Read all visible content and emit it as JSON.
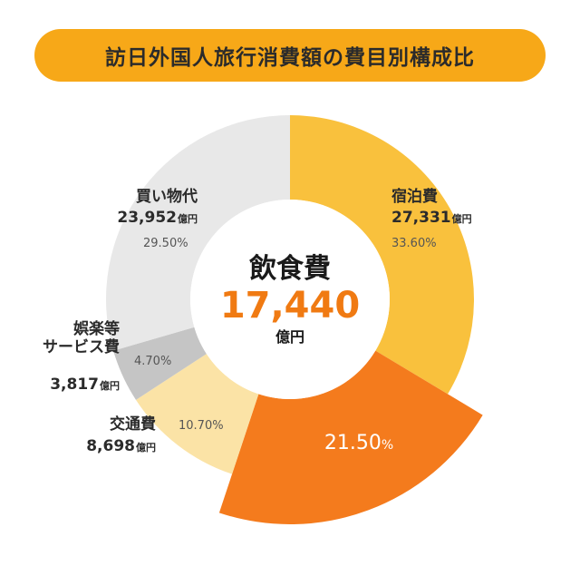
{
  "title": "訪日外国人旅行消費額の費目別構成比",
  "colors": {
    "title_bg": "#f7a818",
    "highlight": "#f07a12"
  },
  "chart_data": {
    "type": "pie",
    "style": "donut",
    "unit": "億円",
    "highlighted": "飲食費",
    "center": {
      "name": "飲食費",
      "value": "17,440",
      "unit": "億円"
    },
    "slices": [
      {
        "key": "lodging",
        "name_lines": [
          "宿泊費"
        ],
        "value": 27331,
        "value_label": "27,331",
        "percent": 33.6,
        "percent_label": "33.60",
        "color": "#f9c13d"
      },
      {
        "key": "food",
        "name_lines": [
          "飲食費"
        ],
        "value": 17440,
        "value_label": "17,440",
        "percent": 21.5,
        "percent_label": "21.50",
        "color": "#f47b1d",
        "exploded": true
      },
      {
        "key": "transport",
        "name_lines": [
          "交通費"
        ],
        "value": 8698,
        "value_label": "8,698",
        "percent": 10.7,
        "percent_label": "10.70",
        "color": "#fbe3a6"
      },
      {
        "key": "leisure",
        "name_lines": [
          "娯楽等",
          "サービス費"
        ],
        "value": 3817,
        "value_label": "3,817",
        "percent": 4.7,
        "percent_label": "4.70",
        "color": "#c5c5c5"
      },
      {
        "key": "shopping",
        "name_lines": [
          "買い物代"
        ],
        "value": 23952,
        "value_label": "23,952",
        "percent": 29.5,
        "percent_label": "29.50",
        "color": "#e8e8e8"
      }
    ],
    "percent_unit": "%"
  }
}
